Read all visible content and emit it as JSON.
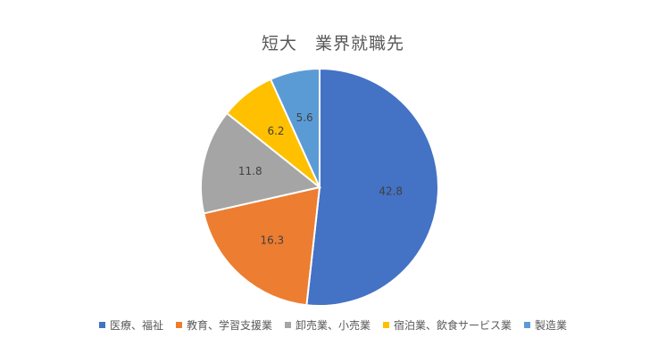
{
  "chart_data": {
    "type": "pie",
    "title": "短大　業界就職先",
    "categories": [
      "医療、福祉",
      "教育、学習支援業",
      "卸売業、小売業",
      "宿泊業、飲食サービス業",
      "製造業"
    ],
    "values": [
      42.8,
      16.3,
      11.8,
      6.2,
      5.6
    ],
    "colors": [
      "#4472C4",
      "#ED7D31",
      "#A5A5A5",
      "#FFC000",
      "#5B9BD5"
    ],
    "legend_position": "bottom",
    "data_labels": true
  }
}
